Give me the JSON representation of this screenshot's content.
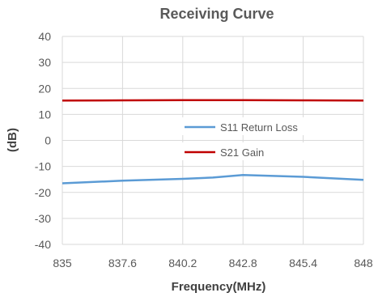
{
  "chart_data": {
    "type": "line",
    "title": "Receiving Curve",
    "xlabel": "Frequency(MHz)",
    "ylabel": "(dB)",
    "x": [
      835,
      837.6,
      840.2,
      841.5,
      842.8,
      845.4,
      848
    ],
    "x_ticks": [
      "835",
      "837.6",
      "840.2",
      "842.8",
      "845.4",
      "848"
    ],
    "xlim": [
      835,
      848
    ],
    "ylim": [
      -40,
      40
    ],
    "y_ticks": [
      "40",
      "30",
      "20",
      "10",
      "0",
      "-10",
      "-20",
      "-30",
      "-40"
    ],
    "grid": true,
    "legend_position": "center-right",
    "series": [
      {
        "name": "S11 Return Loss",
        "color": "#5b9bd5",
        "values": [
          -16.5,
          -15.5,
          -14.8,
          -14.3,
          -13.3,
          -14.0,
          -15.2
        ]
      },
      {
        "name": "S21 Gain",
        "color": "#c00000",
        "values": [
          15.3,
          15.4,
          15.5,
          15.5,
          15.5,
          15.4,
          15.3
        ]
      }
    ]
  }
}
